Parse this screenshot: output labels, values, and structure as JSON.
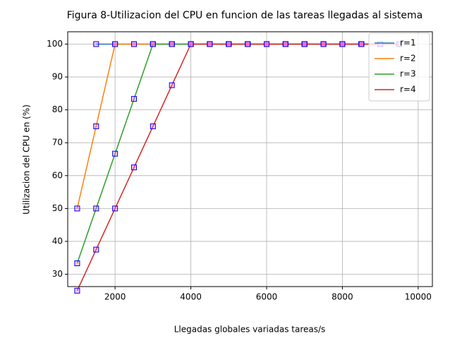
{
  "chart_data": {
    "type": "line",
    "title": "Figura 8-Utilizacion del CPU en funcion de las tareas llegadas al sistema",
    "x_label": "Llegadas globales variadas tareas/s",
    "y_label": "Utilizacion del CPU en (%)",
    "x": [
      1000,
      1500,
      2000,
      2500,
      3000,
      3500,
      4000,
      4500,
      5000,
      5500,
      6000,
      6500,
      7000,
      7500,
      8000,
      8500,
      9000,
      9500
    ],
    "series": [
      {
        "name": "r=1",
        "color": "#1f77b4",
        "values": [
          null,
          100,
          100,
          100,
          100,
          100,
          100,
          100,
          100,
          100,
          100,
          100,
          100,
          100,
          100,
          100,
          100,
          100
        ]
      },
      {
        "name": "r=2",
        "color": "#ff7f0e",
        "values": [
          50,
          75,
          100,
          100,
          100,
          100,
          100,
          100,
          100,
          100,
          100,
          100,
          100,
          100,
          100,
          100,
          100,
          100
        ]
      },
      {
        "name": "r=3",
        "color": "#2ca02c",
        "values": [
          33.33,
          50,
          66.67,
          83.33,
          100,
          100,
          100,
          100,
          100,
          100,
          100,
          100,
          100,
          100,
          100,
          100,
          100,
          100
        ]
      },
      {
        "name": "r=4",
        "color": "#d62728",
        "values": [
          25,
          37.5,
          50,
          62.5,
          75,
          87.5,
          100,
          100,
          100,
          100,
          100,
          100,
          100,
          100,
          100,
          100,
          100,
          100
        ]
      }
    ],
    "marker": "square",
    "marker_edge_color": "#0000ff",
    "marker_face_color": "#ff66cc",
    "xlim": [
      750,
      10375
    ],
    "xticks": [
      2000,
      4000,
      6000,
      8000,
      10000
    ],
    "ylim": [
      26.25,
      103.75
    ],
    "yticks": [
      30,
      40,
      50,
      60,
      70,
      80,
      90,
      100
    ],
    "grid": true,
    "legend": "upper right"
  }
}
